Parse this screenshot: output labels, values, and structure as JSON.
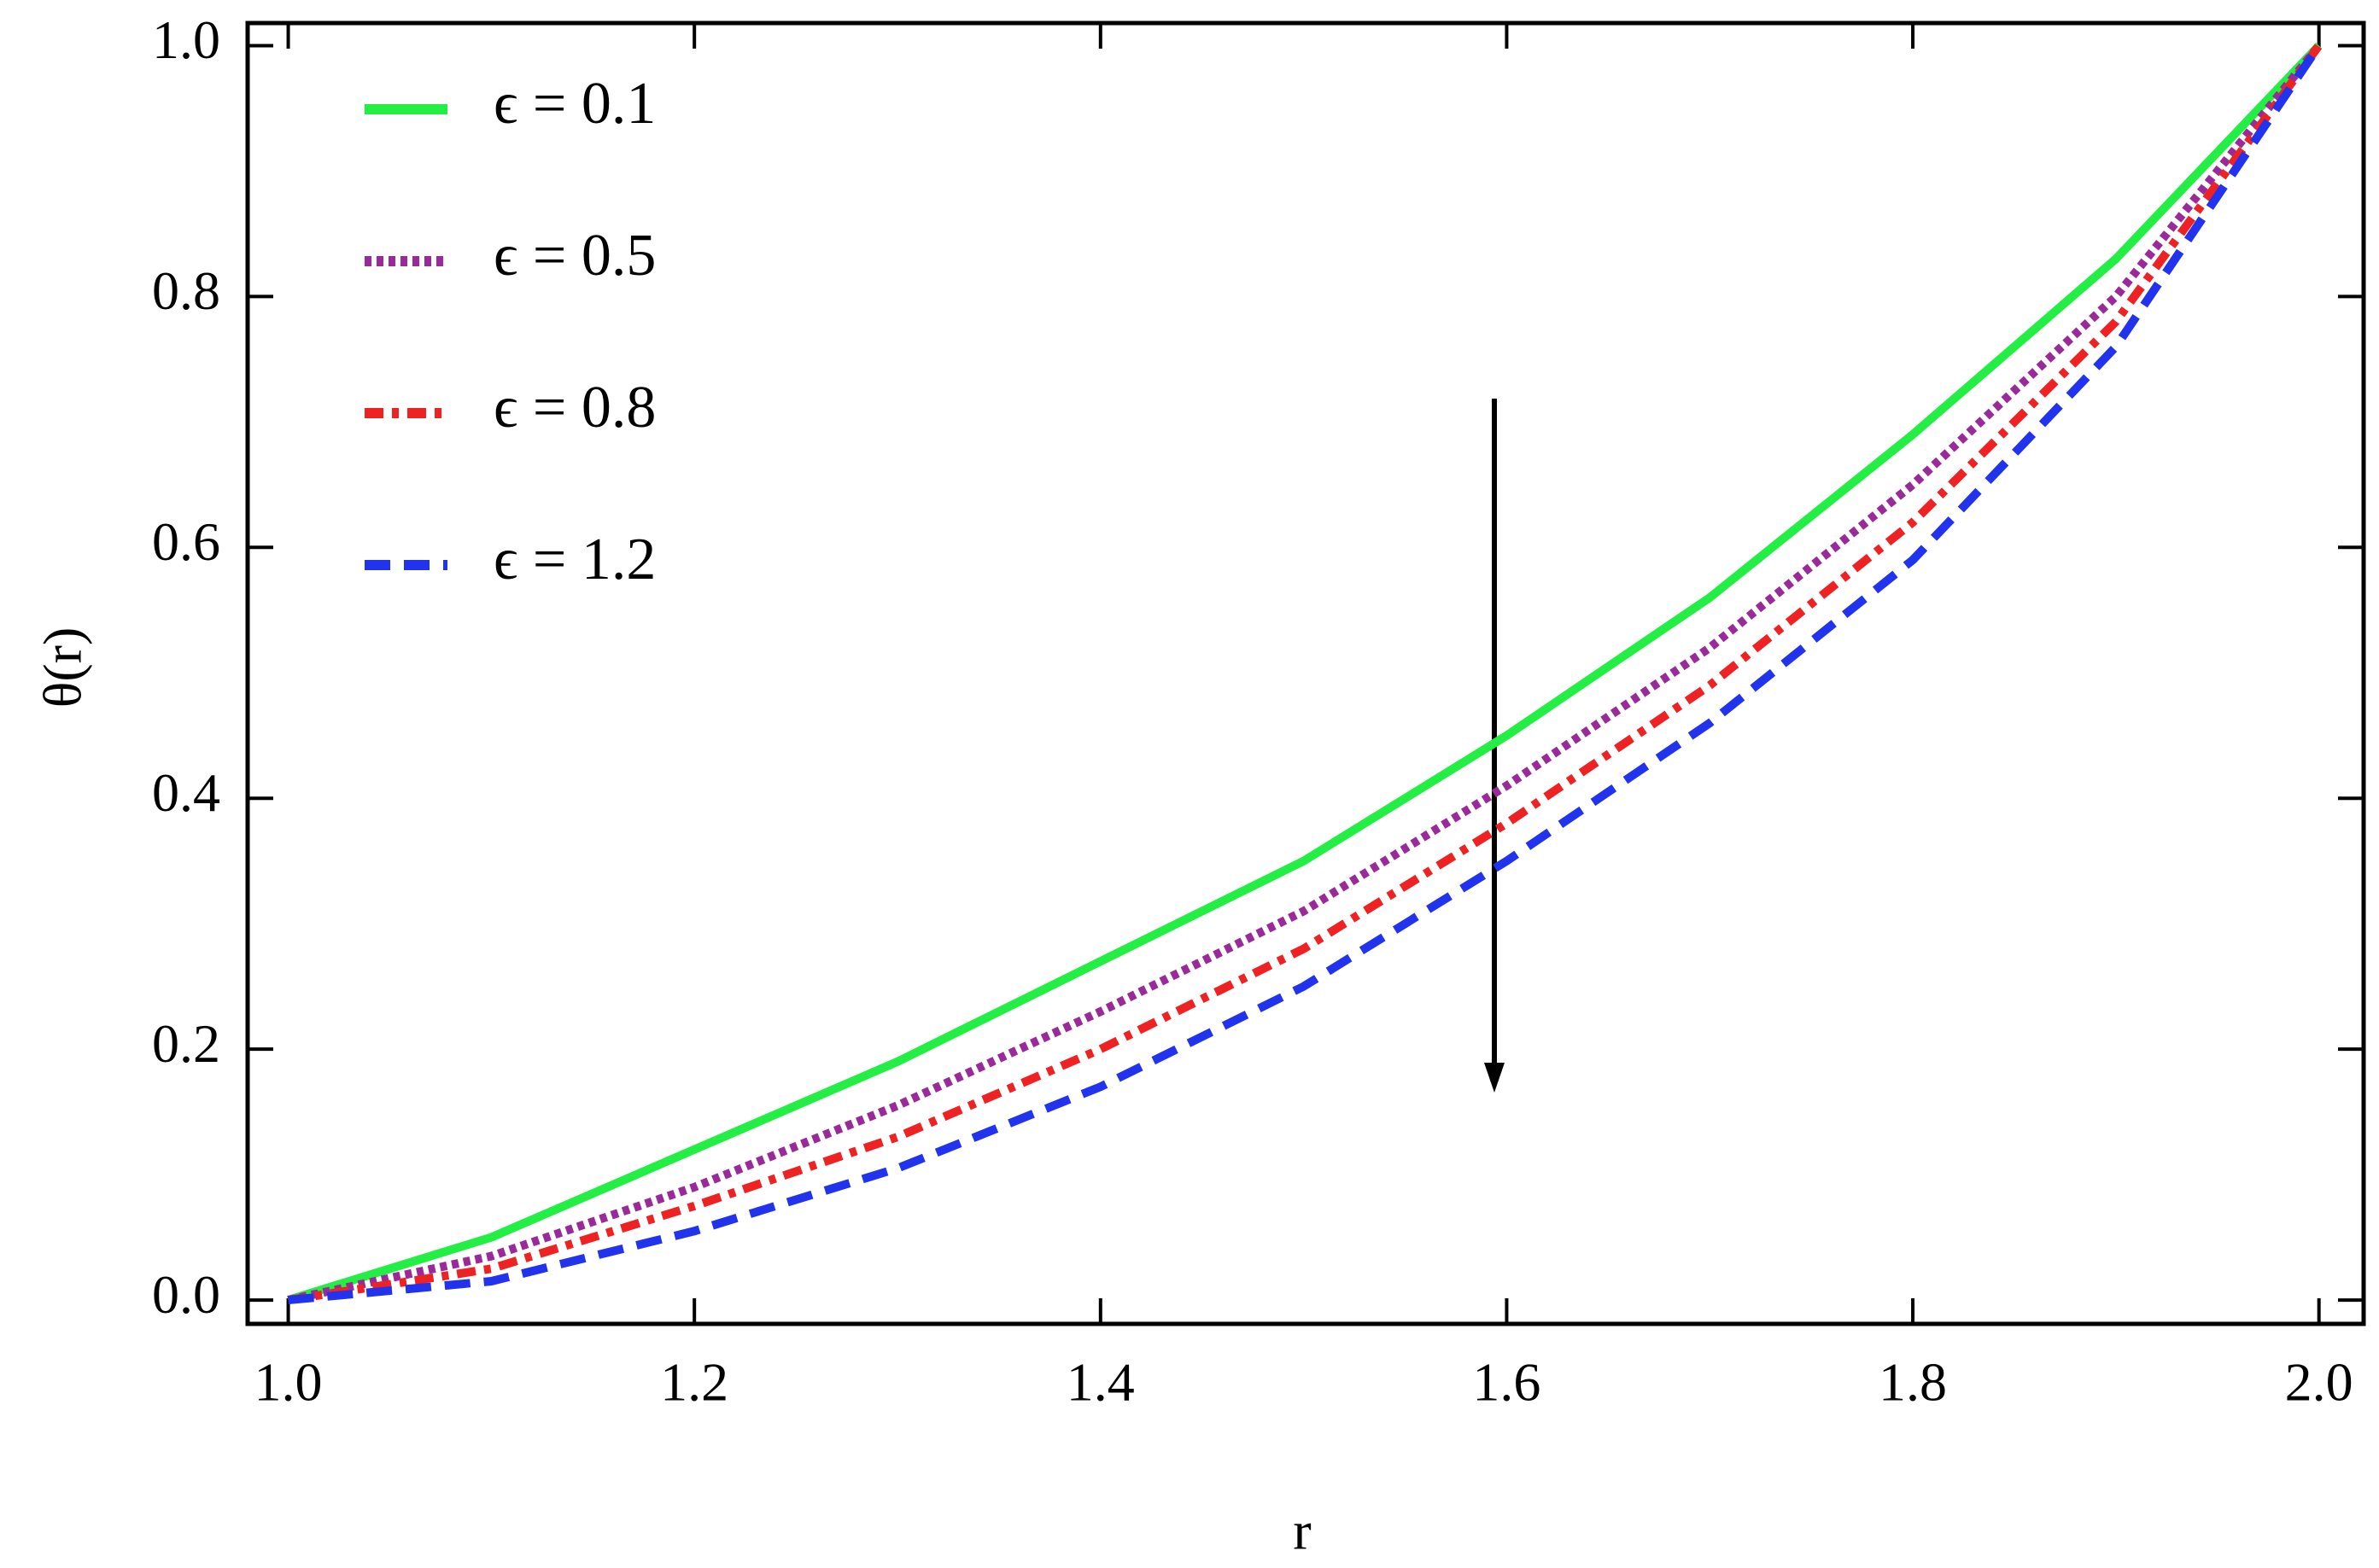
{
  "chart_data": {
    "type": "line",
    "x_label": "r",
    "y_label": "θ(r)",
    "x": [
      1.0,
      1.1,
      1.2,
      1.3,
      1.4,
      1.5,
      1.6,
      1.7,
      1.8,
      1.9,
      2.0
    ],
    "series": [
      {
        "name": "ϵ = 0.1",
        "color": "#22ee44",
        "dash": "solid",
        "values": [
          0,
          0.05,
          0.12,
          0.19,
          0.27,
          0.35,
          0.45,
          0.56,
          0.69,
          0.83,
          1.0
        ]
      },
      {
        "name": "ϵ = 0.5",
        "color": "#9a2a9a",
        "dash": "dotted",
        "values": [
          0,
          0.035,
          0.09,
          0.155,
          0.23,
          0.31,
          0.41,
          0.52,
          0.65,
          0.8,
          1.0
        ]
      },
      {
        "name": "ϵ = 0.8",
        "color": "#ee2222",
        "dash": "dashdot",
        "values": [
          0,
          0.025,
          0.075,
          0.13,
          0.2,
          0.28,
          0.38,
          0.49,
          0.62,
          0.78,
          1.0
        ]
      },
      {
        "name": "ϵ = 1.2",
        "color": "#2233ee",
        "dash": "dashed",
        "values": [
          0,
          0.015,
          0.055,
          0.105,
          0.17,
          0.25,
          0.35,
          0.46,
          0.59,
          0.76,
          1.0
        ]
      }
    ],
    "xlim": [
      0.98,
      2.022
    ],
    "ylim": [
      -0.019,
      1.018
    ],
    "xticks": [
      {
        "value": 1,
        "label": "1.0"
      },
      1.2,
      1.4,
      1.6,
      1.8,
      {
        "value": 2,
        "label": "2.0"
      }
    ],
    "yticks": [
      {
        "value": 0,
        "label": "0.0"
      },
      0.2,
      0.4,
      0.6,
      0.8,
      {
        "value": 1,
        "label": "1.0"
      }
    ],
    "grid": false,
    "legend": "upper-left"
  }
}
